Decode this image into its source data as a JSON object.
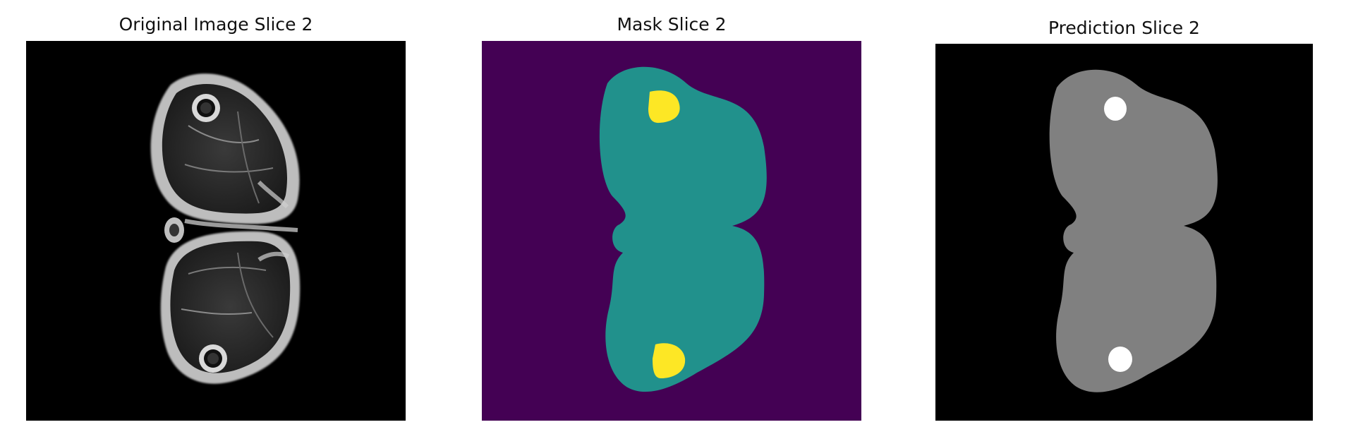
{
  "panels": [
    {
      "title": "Original Image Slice 2",
      "image": "mri-thigh-cross-section",
      "colormap": "gray"
    },
    {
      "title": "Mask Slice 2",
      "image": "segmentation-mask",
      "colormap": "viridis",
      "colors": {
        "background": "#440154",
        "tissue": "#21918c",
        "bone": "#fde725"
      }
    },
    {
      "title": "Prediction Slice 2",
      "image": "predicted-segmentation",
      "colormap": "gray",
      "colors": {
        "background": "#000000",
        "tissue": "#808080",
        "bone": "#ffffff"
      }
    }
  ]
}
